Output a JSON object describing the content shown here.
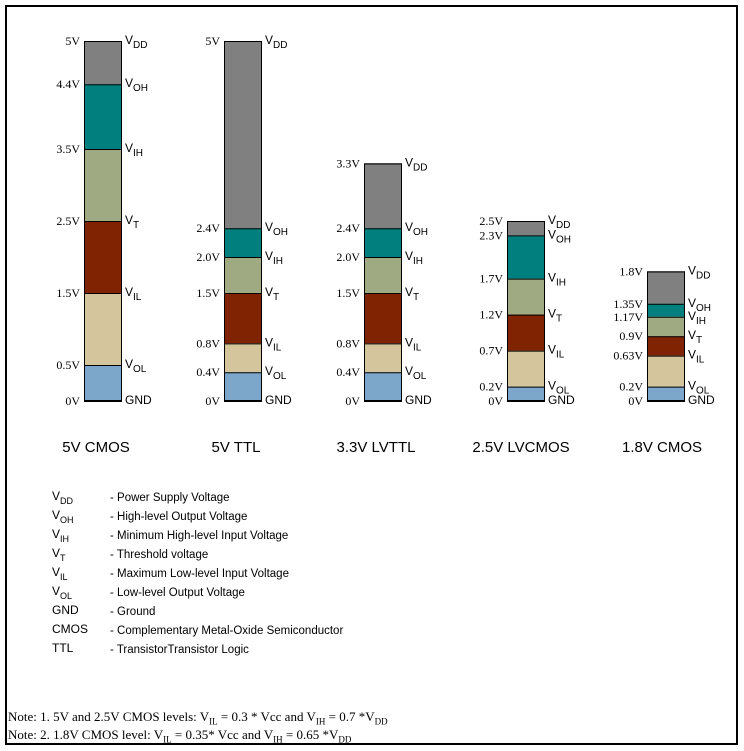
{
  "colors": {
    "vdd": "#808080",
    "voh": "#007f7f",
    "vih": "#9faa82",
    "vt": "#7f2303",
    "vil": "#d5c59c",
    "vol": "#7da6cb"
  },
  "standards": [
    {
      "name": "5V CMOS",
      "levels": [
        {
          "value": 5,
          "value_label": "5V",
          "sym_main": "V",
          "sym_sub": "DD"
        },
        {
          "value": 4.4,
          "value_label": "4.4V",
          "sym_main": "V",
          "sym_sub": "OH"
        },
        {
          "value": 3.5,
          "value_label": "3.5V",
          "sym_main": "V",
          "sym_sub": "IH"
        },
        {
          "value": 2.5,
          "value_label": "2.5V",
          "sym_main": "V",
          "sym_sub": "T"
        },
        {
          "value": 1.5,
          "value_label": "1.5V",
          "sym_main": "V",
          "sym_sub": "IL"
        },
        {
          "value": 0.5,
          "value_label": "0.5V",
          "sym_main": "V",
          "sym_sub": "OL"
        },
        {
          "value": 0,
          "value_label": "0V",
          "sym_main": "GND",
          "sym_sub": ""
        }
      ]
    },
    {
      "name": "5V TTL",
      "levels": [
        {
          "value": 5,
          "value_label": "5V",
          "sym_main": "V",
          "sym_sub": "DD"
        },
        {
          "value": 2.4,
          "value_label": "2.4V",
          "sym_main": "V",
          "sym_sub": "OH"
        },
        {
          "value": 2.0,
          "value_label": "2.0V",
          "sym_main": "V",
          "sym_sub": "IH"
        },
        {
          "value": 1.5,
          "value_label": "1.5V",
          "sym_main": "V",
          "sym_sub": "T"
        },
        {
          "value": 0.8,
          "value_label": "0.8V",
          "sym_main": "V",
          "sym_sub": "IL"
        },
        {
          "value": 0.4,
          "value_label": "0.4V",
          "sym_main": "V",
          "sym_sub": "OL"
        },
        {
          "value": 0,
          "value_label": "0V",
          "sym_main": "GND",
          "sym_sub": ""
        }
      ]
    },
    {
      "name": "3.3V LVTTL",
      "levels": [
        {
          "value": 3.3,
          "value_label": "3.3V",
          "sym_main": "V",
          "sym_sub": "DD"
        },
        {
          "value": 2.4,
          "value_label": "2.4V",
          "sym_main": "V",
          "sym_sub": "OH"
        },
        {
          "value": 2.0,
          "value_label": "2.0V",
          "sym_main": "V",
          "sym_sub": "IH"
        },
        {
          "value": 1.5,
          "value_label": "1.5V",
          "sym_main": "V",
          "sym_sub": "T"
        },
        {
          "value": 0.8,
          "value_label": "0.8V",
          "sym_main": "V",
          "sym_sub": "IL"
        },
        {
          "value": 0.4,
          "value_label": "0.4V",
          "sym_main": "V",
          "sym_sub": "OL"
        },
        {
          "value": 0,
          "value_label": "0V",
          "sym_main": "GND",
          "sym_sub": ""
        }
      ]
    },
    {
      "name": "2.5V LVCMOS",
      "levels": [
        {
          "value": 2.5,
          "value_label": "2.5V",
          "sym_main": "V",
          "sym_sub": "DD"
        },
        {
          "value": 2.3,
          "value_label": "2.3V",
          "sym_main": "V",
          "sym_sub": "OH"
        },
        {
          "value": 1.7,
          "value_label": "1.7V",
          "sym_main": "V",
          "sym_sub": "IH"
        },
        {
          "value": 1.2,
          "value_label": "1.2V",
          "sym_main": "V",
          "sym_sub": "T"
        },
        {
          "value": 0.7,
          "value_label": "0.7V",
          "sym_main": "V",
          "sym_sub": "IL"
        },
        {
          "value": 0.2,
          "value_label": "0.2V",
          "sym_main": "V",
          "sym_sub": "OL"
        },
        {
          "value": 0,
          "value_label": "0V",
          "sym_main": "GND",
          "sym_sub": ""
        }
      ]
    },
    {
      "name": "1.8V CMOS",
      "levels": [
        {
          "value": 1.8,
          "value_label": "1.8V",
          "sym_main": "V",
          "sym_sub": "DD"
        },
        {
          "value": 1.35,
          "value_label": "1.35V",
          "sym_main": "V",
          "sym_sub": "OH"
        },
        {
          "value": 1.17,
          "value_label": "1.17V",
          "sym_main": "V",
          "sym_sub": "IH"
        },
        {
          "value": 0.9,
          "value_label": "0.9V",
          "sym_main": "V",
          "sym_sub": "T"
        },
        {
          "value": 0.63,
          "value_label": "0.63V",
          "sym_main": "V",
          "sym_sub": "IL"
        },
        {
          "value": 0.2,
          "value_label": "0.2V",
          "sym_main": "V",
          "sym_sub": "OL"
        },
        {
          "value": 0,
          "value_label": "0V",
          "sym_main": "GND",
          "sym_sub": ""
        }
      ]
    }
  ],
  "legend": [
    {
      "sym_main": "V",
      "sym_sub": "DD",
      "desc": "- Power Supply Voltage"
    },
    {
      "sym_main": "V",
      "sym_sub": "OH",
      "desc": "- High-level Output Voltage"
    },
    {
      "sym_main": "V",
      "sym_sub": "IH",
      "desc": "- Minimum High-level Input Voltage"
    },
    {
      "sym_main": "V",
      "sym_sub": "T",
      "desc": "- Threshold voltage"
    },
    {
      "sym_main": "V",
      "sym_sub": "IL",
      "desc": "- Maximum Low-level Input Voltage"
    },
    {
      "sym_main": "V",
      "sym_sub": "OL",
      "desc": "- Low-level Output Voltage"
    },
    {
      "sym_main": "GND",
      "sym_sub": "",
      "desc": "- Ground"
    },
    {
      "sym_main": "CMOS",
      "sym_sub": "",
      "desc": "- Complementary Metal-Oxide Semiconductor"
    },
    {
      "sym_main": "TTL",
      "sym_sub": "",
      "desc": "- TransistorTransistor Logic"
    }
  ],
  "notes": [
    {
      "prefix": "Note: 1. 5V and 2.5V CMOS levels: ",
      "a_main": "V",
      "a_sub": "IL",
      "a_rest": " = 0.3 * Vcc and ",
      "b_main": "V",
      "b_sub": "IH",
      "b_rest": " = 0.7 *",
      "c_main": "V",
      "c_sub": "DD"
    },
    {
      "prefix": "Note: 2. 1.8V CMOS level: ",
      "a_main": "V",
      "a_sub": "IL",
      "a_rest": " = 0.35* Vcc and ",
      "b_main": "V",
      "b_sub": "IH",
      "b_rest": " = 0.65 *",
      "c_main": "V",
      "c_sub": "DD"
    }
  ]
}
